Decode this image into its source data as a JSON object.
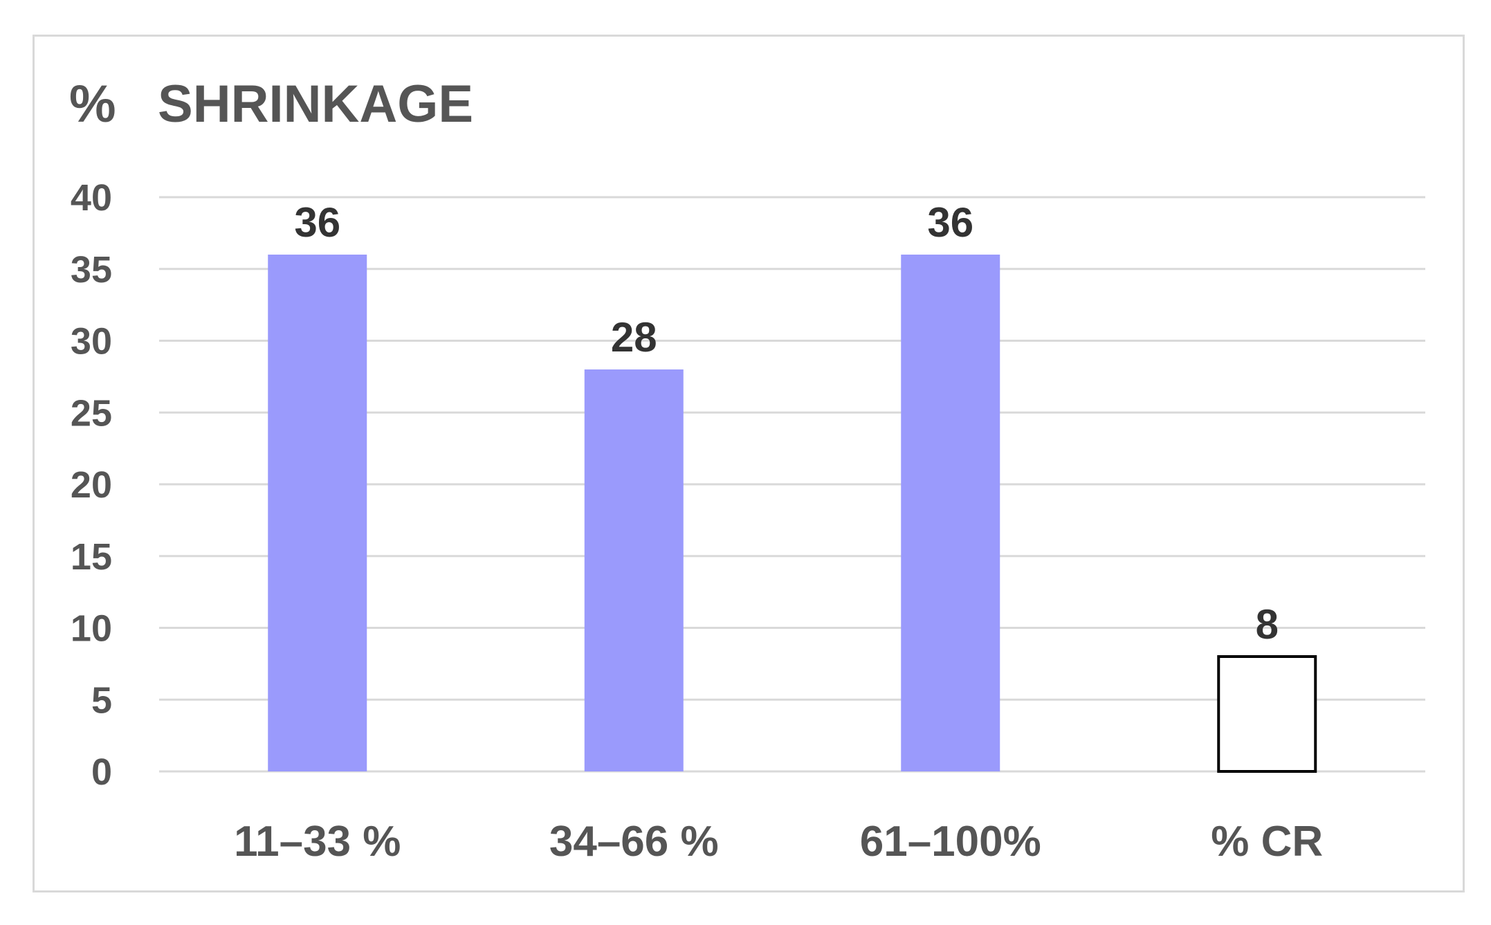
{
  "chart_data": {
    "type": "bar",
    "title_prefix": "%",
    "title": "SHRINKAGE",
    "xlabel": "",
    "ylabel": "",
    "categories": [
      "11–33 %",
      "34–66 %",
      "61–100%",
      "% CR"
    ],
    "values": [
      36,
      28,
      36,
      8
    ],
    "data_labels": [
      "36",
      "28",
      "36",
      "8"
    ],
    "ylim": [
      0,
      40
    ],
    "yticks": [
      0,
      5,
      10,
      15,
      20,
      25,
      30,
      35,
      40
    ],
    "ytick_labels": [
      "0",
      "5",
      "10",
      "15",
      "20",
      "25",
      "30",
      "35",
      "40"
    ],
    "grid": true,
    "legend": "none",
    "bar_styles": [
      "filled",
      "filled",
      "filled",
      "outline"
    ],
    "colors": {
      "bar_fill": "#9a9afc",
      "outline_bar_stroke": "#000000",
      "outline_bar_fill": "#ffffff",
      "gridline": "#d9d9d9",
      "axis_text": "#555555",
      "value_text": "#333333",
      "frame_border": "#d9d9d9"
    }
  }
}
